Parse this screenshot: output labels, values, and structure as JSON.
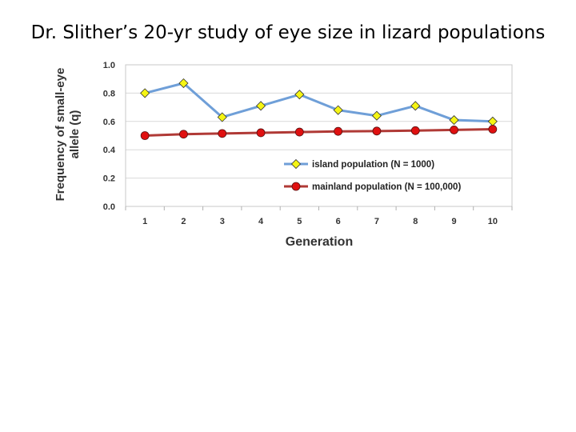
{
  "slide": {
    "title": "Dr. Slither’s 20-yr study of eye size in lizard populations"
  },
  "chart_data": {
    "type": "line",
    "title": "",
    "xlabel": "Generation",
    "ylabel_line1": "Frequency of small-eye",
    "ylabel_line2": "allele (q)",
    "categories": [
      "1",
      "2",
      "3",
      "4",
      "5",
      "6",
      "7",
      "8",
      "9",
      "10"
    ],
    "yticks": [
      "0.0",
      "0.2",
      "0.4",
      "0.6",
      "0.8",
      "1.0"
    ],
    "ylim": [
      0,
      1
    ],
    "grid": true,
    "legend_position": "bottom-right",
    "series": [
      {
        "name": "island population (N = 1000)",
        "values": [
          0.8,
          0.87,
          0.63,
          0.71,
          0.79,
          0.68,
          0.64,
          0.71,
          0.61,
          0.6
        ],
        "line_color": "#6f9fd8",
        "marker": "diamond",
        "marker_color": "#f5f514"
      },
      {
        "name": "mainland population (N = 100,000)",
        "values": [
          0.5,
          0.51,
          0.515,
          0.52,
          0.525,
          0.53,
          0.532,
          0.535,
          0.54,
          0.545
        ],
        "line_color": "#b03a36",
        "marker": "circle",
        "marker_color": "#e01010"
      }
    ]
  }
}
